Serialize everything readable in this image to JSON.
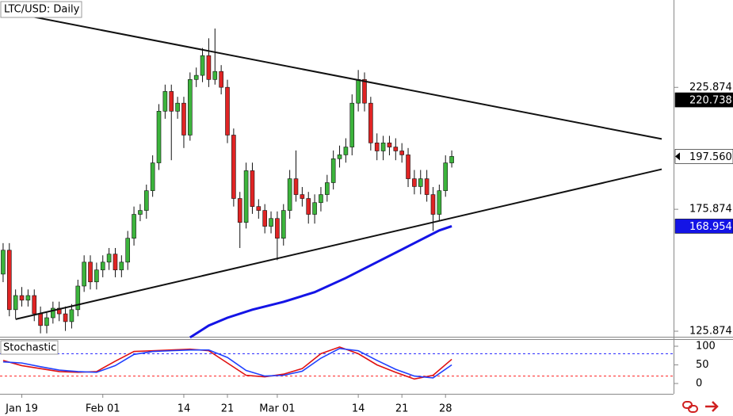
{
  "chart_data": [
    {
      "type": "candlestick",
      "title": "LTC/USD: Daily",
      "open": [
        149.3,
        159.1,
        134.7,
        140.5,
        138.6,
        140.5,
        133.0,
        128.2,
        131.4,
        135.3,
        133.0,
        129.8,
        134.7,
        144.4,
        154.2,
        146.1,
        151.0,
        154.2,
        157.5,
        151.0,
        154.2,
        164.0,
        173.8,
        175.4,
        183.5,
        194.9,
        216.1,
        224.2,
        216.1,
        219.4,
        206.3,
        229.1,
        230.8,
        238.9,
        229.1,
        232.4,
        225.9,
        206.3,
        180.3,
        170.5,
        191.7,
        177.0,
        175.4,
        168.9,
        172.1,
        164.0,
        175.4,
        188.4,
        181.9,
        180.3,
        173.8,
        178.6,
        181.9,
        186.8,
        196.6,
        198.2,
        201.4,
        219.4,
        229.1,
        219.4,
        203.1,
        199.8,
        203.1,
        201.4,
        199.8,
        198.2,
        188.4,
        185.2,
        188.4,
        181.9,
        173.8,
        183.5,
        194.9
      ],
      "high": [
        162,
        162,
        143,
        144,
        143,
        143,
        136,
        134,
        138,
        138,
        136,
        137,
        147,
        157,
        157,
        154,
        157,
        160,
        160,
        157,
        167,
        177,
        178,
        186,
        198,
        219,
        227,
        227,
        222,
        222,
        232,
        234,
        242,
        246,
        250,
        235,
        229,
        209,
        183,
        195,
        195,
        180,
        178,
        175,
        175,
        178,
        192,
        200,
        185,
        183,
        182,
        185,
        190,
        200,
        202,
        205,
        223,
        233,
        232,
        222,
        207,
        206,
        206,
        205,
        203,
        201,
        192,
        192,
        192,
        185,
        186,
        198,
        200
      ],
      "low": [
        146,
        132,
        131,
        136,
        136,
        130,
        125,
        125,
        129,
        130,
        126,
        127,
        132,
        142,
        143,
        143,
        148,
        151,
        148,
        148,
        151,
        161,
        171,
        172,
        181,
        192,
        213,
        196,
        213,
        201,
        204,
        226,
        228,
        226,
        227,
        223,
        203,
        177,
        160,
        168,
        174,
        172,
        166,
        166,
        155,
        161,
        172,
        179,
        177,
        170,
        170,
        175,
        179,
        184,
        193,
        195,
        198,
        216,
        216,
        200,
        196,
        196,
        198,
        196,
        195,
        185,
        182,
        182,
        179,
        167,
        171,
        181,
        193
      ],
      "close": [
        159.1,
        134.7,
        140.5,
        138.6,
        140.5,
        133.0,
        128.2,
        131.4,
        135.3,
        133.0,
        129.8,
        134.7,
        144.4,
        154.2,
        146.1,
        151.0,
        154.2,
        157.5,
        151.0,
        154.2,
        164.0,
        173.8,
        175.4,
        183.5,
        194.9,
        216.1,
        224.2,
        216.1,
        219.4,
        206.3,
        229.1,
        230.8,
        238.9,
        229.1,
        232.4,
        225.9,
        206.3,
        180.3,
        170.5,
        191.7,
        177.0,
        175.4,
        168.9,
        172.1,
        164.0,
        175.4,
        188.4,
        181.9,
        180.3,
        173.8,
        178.6,
        181.9,
        186.8,
        196.6,
        198.2,
        201.4,
        219.4,
        229.1,
        219.4,
        203.1,
        199.8,
        203.1,
        201.4,
        199.8,
        198.2,
        188.4,
        185.2,
        188.4,
        181.9,
        173.8,
        183.5,
        194.9,
        197.56
      ],
      "up_color": "#3cb43c",
      "down_color": "#e02424",
      "xlim": [
        -0.5,
        107.6
      ],
      "xticks": [
        {
          "value": 3,
          "label": "Jan 19"
        },
        {
          "value": 16,
          "label": "Feb 01"
        },
        {
          "value": 29,
          "label": "14"
        },
        {
          "value": 36,
          "label": "21"
        },
        {
          "value": 44,
          "label": "Mar 01"
        },
        {
          "value": 57,
          "label": "14"
        },
        {
          "value": 64,
          "label": "21"
        },
        {
          "value": 71,
          "label": "28"
        }
      ],
      "ylim": [
        123.6,
        261.7
      ],
      "yticks": [
        125.874,
        175.874,
        225.874
      ],
      "moving_average": {
        "color": "#1414e6",
        "x": [
          30,
          33,
          36,
          40,
          45,
          50,
          55,
          60,
          65,
          70,
          72
        ],
        "values": [
          123.3,
          128.2,
          131.4,
          134.7,
          137.9,
          141.9,
          147.7,
          154.2,
          160.7,
          167.2,
          168.954
        ]
      },
      "trendlines": [
        {
          "color": "#111111",
          "x": [
            4,
            105.7
          ],
          "values": [
            255.2,
            204.7
          ]
        },
        {
          "color": "#111111",
          "x": [
            2,
            105.7
          ],
          "values": [
            130.8,
            192.3
          ]
        }
      ],
      "price_labels": [
        {
          "value": 220.738,
          "bg": "#000000",
          "fg": "#ffffff"
        },
        {
          "value": 197.56,
          "label": "197.560",
          "bg": "#ffffff",
          "fg": "#000000"
        },
        {
          "value": 168.954,
          "bg": "#1414e6",
          "fg": "#ffffff"
        }
      ]
    },
    {
      "type": "line",
      "title": "Stochastic",
      "series": [
        {
          "color": "#e01010",
          "x": [
            0,
            3,
            6,
            9,
            12,
            15,
            18,
            21,
            24,
            27,
            30,
            33,
            36,
            39,
            42,
            45,
            48,
            51,
            54,
            57,
            60,
            63,
            66,
            69,
            72
          ],
          "values": [
            62,
            48,
            40,
            32,
            30,
            32,
            60,
            86,
            88,
            90,
            92,
            88,
            55,
            22,
            18,
            25,
            40,
            80,
            98,
            80,
            50,
            30,
            12,
            22,
            65
          ]
        },
        {
          "color": "#2040ff",
          "x": [
            0,
            3,
            6,
            9,
            12,
            15,
            18,
            21,
            24,
            27,
            30,
            33,
            36,
            39,
            42,
            45,
            48,
            51,
            54,
            57,
            60,
            63,
            66,
            69,
            72
          ],
          "values": [
            58,
            55,
            45,
            36,
            32,
            30,
            48,
            78,
            86,
            88,
            90,
            90,
            70,
            35,
            20,
            22,
            33,
            68,
            94,
            88,
            62,
            38,
            20,
            15,
            50
          ]
        }
      ],
      "levels": [
        {
          "value": 80,
          "color": "#2020ff"
        },
        {
          "value": 20,
          "color": "#ff2020"
        }
      ],
      "ylim": [
        -27.7,
        119.1
      ],
      "yticks": [
        0,
        50,
        100
      ]
    }
  ]
}
